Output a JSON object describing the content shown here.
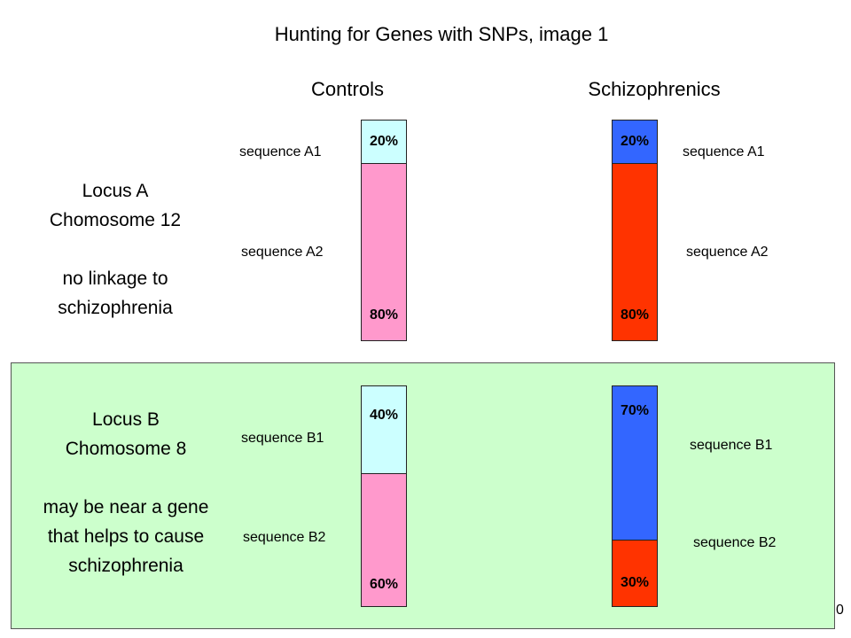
{
  "title": "Hunting for Genes with SNPs, image 1",
  "columns": {
    "controls": "Controls",
    "schizophrenics": "Schizophrenics"
  },
  "colors": {
    "control_a1": "#ccffff",
    "control_a2": "#ff99cc",
    "schiz_a1": "#3366ff",
    "schiz_a2": "#ff3300",
    "panel": "#ccffcc"
  },
  "locus_a": {
    "lines": [
      "Locus A",
      "Chomosome 12",
      "",
      "no linkage to",
      "schizophrenia"
    ],
    "seq1": "sequence A1",
    "seq2": "sequence A2",
    "controls": {
      "top_pct": "20%",
      "bottom_pct": "80%",
      "top_fraction": 0.2
    },
    "schizophrenics": {
      "top_pct": "20%",
      "bottom_pct": "80%",
      "top_fraction": 0.2
    }
  },
  "locus_b": {
    "lines": [
      "Locus B",
      "Chomosome 8",
      "",
      "may be near a gene",
      "that helps to cause",
      "schizophrenia"
    ],
    "seq1": "sequence B1",
    "seq2": "sequence B2",
    "controls": {
      "top_pct": "40%",
      "bottom_pct": "60%",
      "top_fraction": 0.4
    },
    "schizophrenics": {
      "top_pct": "70%",
      "bottom_pct": "30%",
      "top_fraction": 0.7
    }
  },
  "page_number": "0"
}
